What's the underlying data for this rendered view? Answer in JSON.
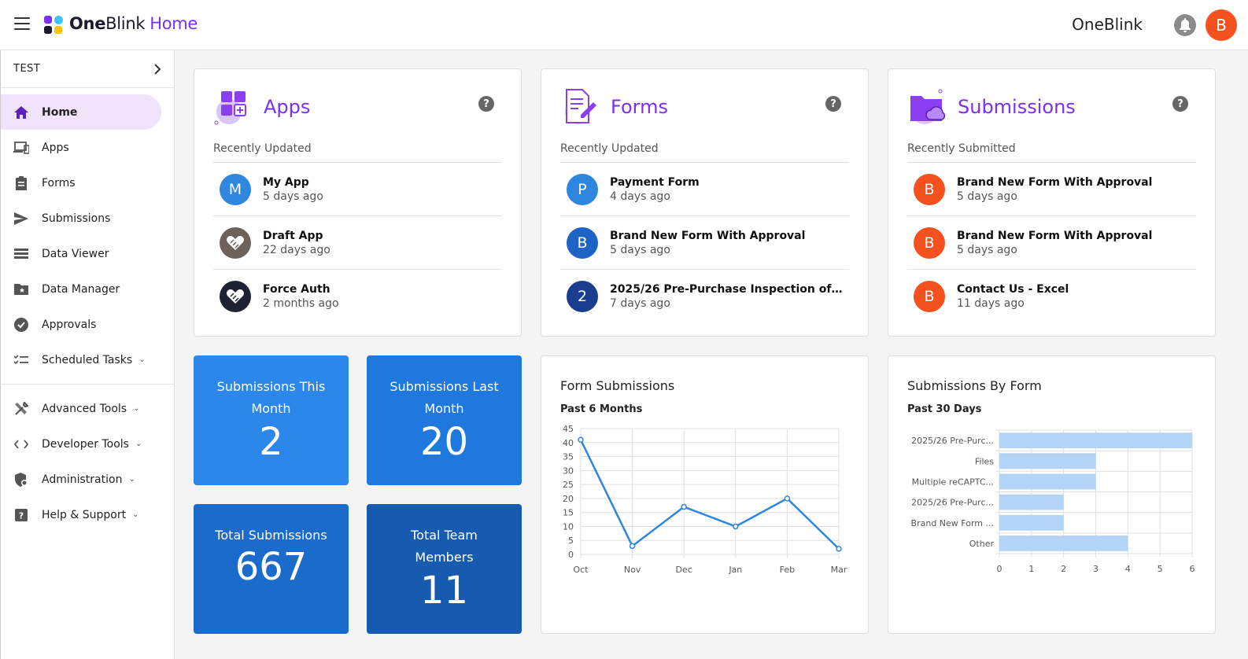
{
  "header": {
    "brand_bold": "One",
    "brand_regular": "Blink",
    "brand_page": "Home",
    "org_name": "OneBlink",
    "user_initial": "B"
  },
  "sidebar": {
    "environment": "TEST",
    "items": [
      {
        "label": "Home",
        "icon": "home-icon",
        "active": true
      },
      {
        "label": "Apps",
        "icon": "devices-icon"
      },
      {
        "label": "Forms",
        "icon": "clipboard-icon"
      },
      {
        "label": "Submissions",
        "icon": "send-icon"
      },
      {
        "label": "Data Viewer",
        "icon": "table-rows-icon"
      },
      {
        "label": "Data Manager",
        "icon": "folder-star-icon"
      },
      {
        "label": "Approvals",
        "icon": "check-circle-icon"
      },
      {
        "label": "Scheduled Tasks",
        "icon": "checklist-icon",
        "expandable": true
      }
    ],
    "items2": [
      {
        "label": "Advanced Tools",
        "icon": "tools-icon",
        "expandable": true
      },
      {
        "label": "Developer Tools",
        "icon": "code-icon",
        "expandable": true
      },
      {
        "label": "Administration",
        "icon": "admin-shield-icon",
        "expandable": true
      },
      {
        "label": "Help & Support",
        "icon": "help-box-icon",
        "expandable": true
      }
    ]
  },
  "apps": {
    "title": "Apps",
    "subtitle": "Recently Updated",
    "items": [
      {
        "initial": "M",
        "name": "My App",
        "time": "5 days ago",
        "color": "#2e86de"
      },
      {
        "initial": "",
        "name": "Draft App",
        "time": "22 days ago",
        "color": "#6d625a"
      },
      {
        "initial": "",
        "name": "Force Auth",
        "time": "2 months ago",
        "color": "#1f2233"
      }
    ]
  },
  "forms": {
    "title": "Forms",
    "subtitle": "Recently Updated",
    "items": [
      {
        "initial": "P",
        "name": "Payment Form",
        "time": "4 days ago",
        "color": "#2e86de"
      },
      {
        "initial": "B",
        "name": "Brand New Form With Approval",
        "time": "5 days ago",
        "color": "#1e63c6"
      },
      {
        "initial": "2",
        "name": "2025/26 Pre-Purchase Inspection of Foo...",
        "time": "7 days ago",
        "color": "#1a3d8f"
      }
    ]
  },
  "submissions": {
    "title": "Submissions",
    "subtitle": "Recently Submitted",
    "items": [
      {
        "initial": "B",
        "name": "Brand New Form With Approval",
        "time": "5 days ago",
        "color": "#f4511e"
      },
      {
        "initial": "B",
        "name": "Brand New Form With Approval",
        "time": "5 days ago",
        "color": "#f4511e"
      },
      {
        "initial": "B",
        "name": "Contact Us - Excel",
        "time": "11 days ago",
        "color": "#f4511e"
      }
    ]
  },
  "stats": {
    "this_month_label": "Submissions This Month",
    "this_month_value": "2",
    "last_month_label": "Submissions Last Month",
    "last_month_value": "20",
    "total_label": "Total Submissions",
    "total_value": "667",
    "members_label": "Total Team Members",
    "members_value": "11"
  },
  "chart_data": [
    {
      "type": "line",
      "title": "Form Submissions",
      "subtitle": "Past 6 Months",
      "categories": [
        "Oct",
        "Nov",
        "Dec",
        "Jan",
        "Feb",
        "Mar"
      ],
      "values": [
        41,
        3,
        17,
        10,
        20,
        2
      ],
      "ylim": [
        0,
        45
      ],
      "yticks": [
        0,
        5,
        10,
        15,
        20,
        25,
        30,
        35,
        40,
        45
      ],
      "grid": true,
      "color": "#2e86de"
    },
    {
      "type": "bar",
      "orientation": "horizontal",
      "title": "Submissions By Form",
      "subtitle": "Past 30 Days",
      "categories": [
        "2025/26 Pre-Purc...",
        "Files",
        "Multiple reCAPTC...",
        "2025/26 Pre-Purc...",
        "Brand New Form ...",
        "Other"
      ],
      "values": [
        6,
        3,
        3,
        2,
        2,
        4
      ],
      "xlim": [
        0,
        6
      ],
      "xticks": [
        0,
        1,
        2,
        3,
        4,
        5,
        6
      ],
      "grid": true,
      "color": "#b3d4f5"
    }
  ]
}
